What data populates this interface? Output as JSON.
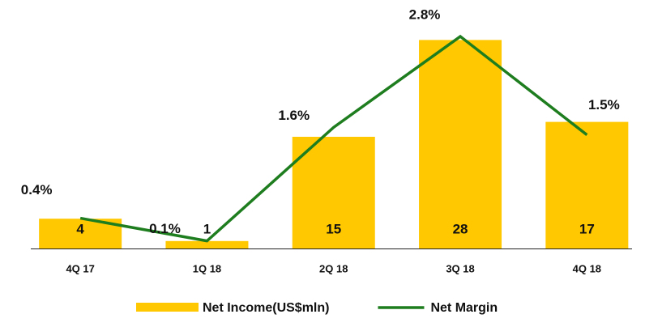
{
  "chart_data": {
    "type": "bar_line",
    "categories": [
      "4Q 17",
      "1Q 18",
      "2Q 18",
      "3Q 18",
      "4Q 18"
    ],
    "series": [
      {
        "name": "Net Income(US$mln)",
        "type": "bar",
        "color": "#ffc800",
        "values": [
          4,
          1,
          15,
          28,
          17
        ]
      },
      {
        "name": "Net Margin",
        "type": "line",
        "axis": "y2",
        "color": "#1e7d1e",
        "values": [
          0.4,
          0.1,
          1.6,
          2.8,
          1.5
        ],
        "value_labels": [
          "0.4%",
          "0.1%",
          "1.6%",
          "2.8%",
          "1.5%"
        ]
      }
    ],
    "ylim": [
      0,
      30
    ],
    "y2lim": [
      0,
      2.95
    ],
    "legend": "bottom"
  }
}
